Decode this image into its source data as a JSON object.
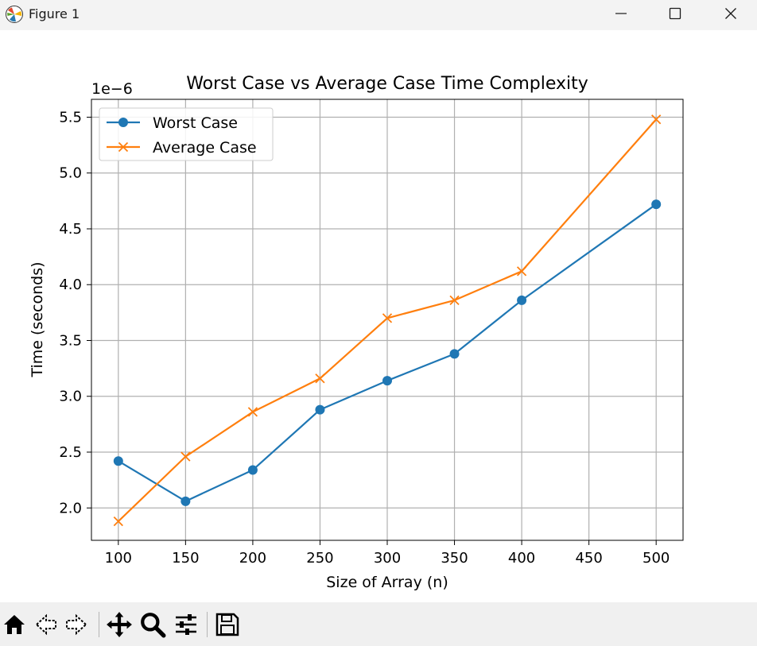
{
  "window": {
    "title": "Figure 1",
    "icons": [
      "matplotlib-icon",
      "minimize-icon",
      "maximize-icon",
      "close-icon"
    ]
  },
  "toolbar": {
    "tools": [
      "home-icon",
      "back-icon",
      "forward-icon",
      "pan-icon",
      "zoom-icon",
      "configure-subplots-icon",
      "save-icon"
    ]
  },
  "chart_data": {
    "type": "line",
    "title": "Worst Case vs Average Case Time Complexity",
    "xlabel": "Size of Array (n)",
    "ylabel": "Time (seconds)",
    "offset_text": "1e−6",
    "xlim": [
      80,
      520
    ],
    "ylim": [
      1.71,
      5.66
    ],
    "xticks": [
      100,
      150,
      200,
      250,
      300,
      350,
      400,
      450,
      500
    ],
    "xtick_labels": [
      "100",
      "150",
      "200",
      "250",
      "300",
      "350",
      "400",
      "450",
      "500"
    ],
    "yticks": [
      2.0,
      2.5,
      3.0,
      3.5,
      4.0,
      4.5,
      5.0,
      5.5
    ],
    "ytick_labels": [
      "2.0",
      "2.5",
      "3.0",
      "3.5",
      "4.0",
      "4.5",
      "5.0",
      "5.5"
    ],
    "grid": true,
    "legend_position": "top-left",
    "series": [
      {
        "name": "Worst Case",
        "color": "#1f77b4",
        "marker": "circle",
        "x": [
          100,
          150,
          200,
          250,
          300,
          350,
          400,
          500
        ],
        "y": [
          2.42,
          2.06,
          2.34,
          2.88,
          3.14,
          3.38,
          3.86,
          4.72
        ]
      },
      {
        "name": "Average Case",
        "color": "#ff7f0e",
        "marker": "x",
        "x": [
          100,
          150,
          200,
          250,
          300,
          350,
          400,
          500
        ],
        "y": [
          1.88,
          2.46,
          2.86,
          3.16,
          3.7,
          3.86,
          4.12,
          5.48
        ]
      }
    ]
  }
}
